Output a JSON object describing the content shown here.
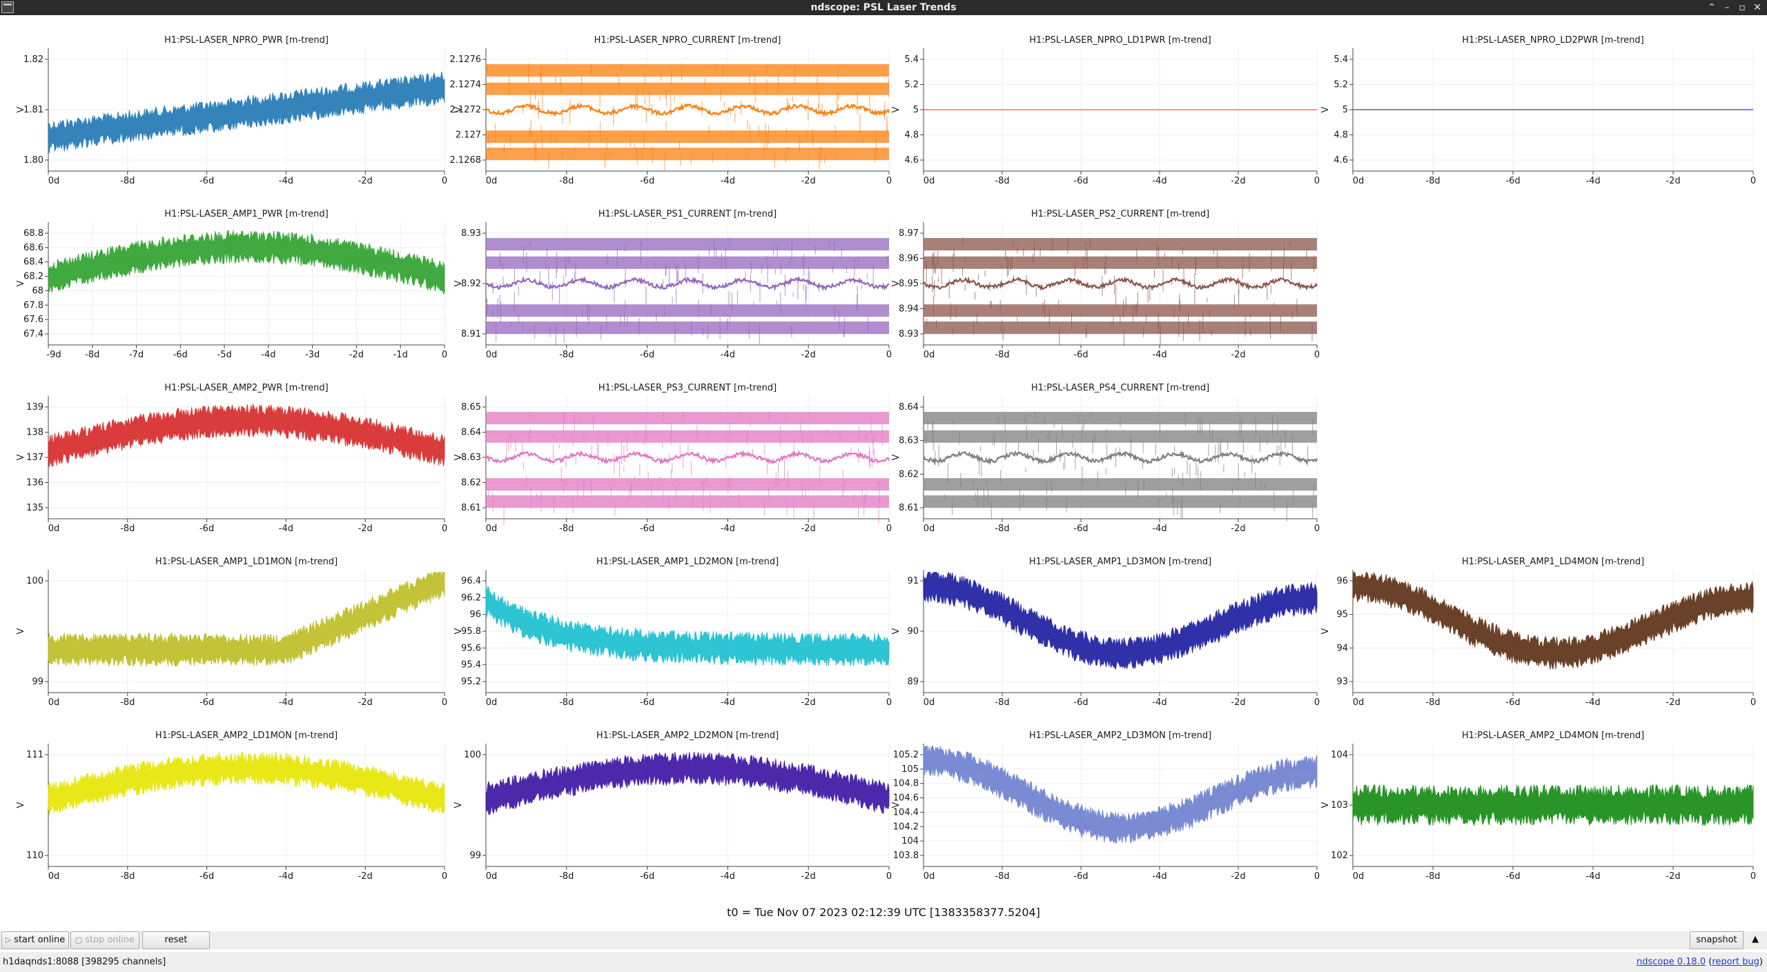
{
  "window": {
    "title": "ndscope: PSL Laser Trends",
    "controls": [
      "minimize",
      "maximize",
      "restore",
      "close"
    ]
  },
  "x_ticks_10": [
    "0d",
    "-9d",
    "-8d",
    "-7d",
    "-6d",
    "-5d",
    "-4d",
    "-3d",
    "-2d",
    "-1d",
    "0"
  ],
  "plots": [
    {
      "title": "H1:PSL-LASER_NPRO_PWR [m-trend]",
      "color": "#1f77b4",
      "ylabel": "V",
      "yticks": [
        "1.82",
        "1.81",
        "1.80"
      ],
      "xticks": [
        "0d",
        "-8d",
        "-6d",
        "-4d",
        "-2d",
        "0"
      ],
      "trend": "rising-noisy",
      "mean": 1.81
    },
    {
      "title": "H1:PSL-LASER_NPRO_CURRENT [m-trend]",
      "color": "#ff7f0e",
      "ylabel": "V",
      "yticks": [
        "2.1276",
        "2.1274",
        "2.1272",
        "2.127",
        "2.1268"
      ],
      "xticks": [
        "0d",
        "-8d",
        "-6d",
        "-4d",
        "-2d",
        "0"
      ],
      "trend": "quantized-bands",
      "mean": 2.1272
    },
    {
      "title": "H1:PSL-LASER_NPRO_LD1PWR [m-trend]",
      "color": "#ff6b6b",
      "ylabel": "V",
      "yticks": [
        "5.4",
        "5.2",
        "5",
        "4.8",
        "4.6"
      ],
      "xticks": [
        "0d",
        "-8d",
        "-6d",
        "-4d",
        "-2d",
        "0"
      ],
      "trend": "flat",
      "mean": 5
    },
    {
      "title": "H1:PSL-LASER_NPRO_LD2PWR [m-trend]",
      "color": "#5a5ab4",
      "ylabel": "V",
      "yticks": [
        "5.4",
        "5.2",
        "5",
        "4.8",
        "4.6"
      ],
      "xticks": [
        "0d",
        "-8d",
        "-6d",
        "-4d",
        "-2d",
        "0"
      ],
      "trend": "flat",
      "mean": 5
    },
    {
      "title": "H1:PSL-LASER_AMP1_PWR [m-trend]",
      "color": "#2ca02c",
      "ylabel": "V",
      "yticks": [
        "68.8",
        "68.6",
        "68.4",
        "68.2",
        "68",
        "67.8",
        "67.6",
        "67.4"
      ],
      "xticks": [
        "-9d",
        "-8d",
        "-7d",
        "-6d",
        "-5d",
        "-4d",
        "-3d",
        "-2d",
        "-1d",
        "0"
      ],
      "trend": "hump-noisy",
      "mean": 68.0
    },
    {
      "title": "H1:PSL-LASER_PS1_CURRENT [m-trend]",
      "color": "#9467bd",
      "ylabel": "V",
      "yticks": [
        "8.93",
        "8.92",
        "8.91"
      ],
      "xticks": [
        "0d",
        "-8d",
        "-6d",
        "-4d",
        "-2d",
        "0"
      ],
      "trend": "quantized-bands",
      "mean": 8.92
    },
    {
      "title": "H1:PSL-LASER_PS2_CURRENT [m-trend]",
      "color": "#8c564b",
      "ylabel": "V",
      "yticks": [
        "8.97",
        "8.96",
        "8.95",
        "8.94",
        "8.93"
      ],
      "xticks": [
        "0d",
        "-8d",
        "-6d",
        "-4d",
        "-2d",
        "0"
      ],
      "trend": "quantized-bands",
      "mean": 8.955
    },
    null,
    {
      "title": "H1:PSL-LASER_AMP2_PWR [m-trend]",
      "color": "#d62728",
      "ylabel": "V",
      "yticks": [
        "139",
        "138",
        "137",
        "136",
        "135"
      ],
      "xticks": [
        "0d",
        "-8d",
        "-6d",
        "-4d",
        "-2d",
        "0"
      ],
      "trend": "hump-noisy",
      "mean": 137
    },
    {
      "title": "H1:PSL-LASER_PS3_CURRENT [m-trend]",
      "color": "#e377c2",
      "ylabel": "V",
      "yticks": [
        "8.65",
        "8.64",
        "8.63",
        "8.62",
        "8.61"
      ],
      "xticks": [
        "0d",
        "-8d",
        "-6d",
        "-4d",
        "-2d",
        "0"
      ],
      "trend": "quantized-bands",
      "mean": 8.628
    },
    {
      "title": "H1:PSL-LASER_PS4_CURRENT [m-trend]",
      "color": "#7f7f7f",
      "ylabel": "V",
      "yticks": [
        "8.64",
        "8.63",
        "8.62",
        "8.61"
      ],
      "xticks": [
        "0d",
        "-8d",
        "-6d",
        "-4d",
        "-2d",
        "0"
      ],
      "trend": "quantized-bands",
      "mean": 8.62
    },
    null,
    {
      "title": "H1:PSL-LASER_AMP1_LD1MON [m-trend]",
      "color": "#bcbd22",
      "ylabel": "V",
      "yticks": [
        "100",
        "99"
      ],
      "xticks": [
        "0d",
        "-8d",
        "-6d",
        "-4d",
        "-2d",
        "0"
      ],
      "trend": "dip-then-rise",
      "mean": 99.6
    },
    {
      "title": "H1:PSL-LASER_AMP1_LD2MON [m-trend]",
      "color": "#17becf",
      "ylabel": "V",
      "yticks": [
        "96.4",
        "96.2",
        "96",
        "95.8",
        "95.6",
        "95.4",
        "95.2"
      ],
      "xticks": [
        "0d",
        "-8d",
        "-6d",
        "-4d",
        "-2d",
        "0"
      ],
      "trend": "decay-flat",
      "mean": 95.8
    },
    {
      "title": "H1:PSL-LASER_AMP1_LD3MON [m-trend]",
      "color": "#1a1aa0",
      "ylabel": "V",
      "yticks": [
        "91",
        "90",
        "89"
      ],
      "xticks": [
        "0d",
        "-8d",
        "-6d",
        "-4d",
        "-2d",
        "0"
      ],
      "trend": "valley",
      "mean": 89.6
    },
    {
      "title": "H1:PSL-LASER_AMP1_LD4MON [m-trend]",
      "color": "#5a2d12",
      "ylabel": "V",
      "yticks": [
        "96",
        "95",
        "94",
        "93"
      ],
      "xticks": [
        "0d",
        "-8d",
        "-6d",
        "-4d",
        "-2d",
        "0"
      ],
      "trend": "valley",
      "mean": 94.2
    },
    {
      "title": "H1:PSL-LASER_AMP2_LD1MON [m-trend]",
      "color": "#e6e600",
      "ylabel": "V",
      "yticks": [
        "111",
        "110"
      ],
      "xticks": [
        "0d",
        "-8d",
        "-6d",
        "-4d",
        "-2d",
        "0"
      ],
      "trend": "hump-noisy",
      "mean": 110.2
    },
    {
      "title": "H1:PSL-LASER_AMP2_LD2MON [m-trend]",
      "color": "#3a11a3",
      "ylabel": "V",
      "yticks": [
        "100",
        "99"
      ],
      "xticks": [
        "0d",
        "-8d",
        "-6d",
        "-4d",
        "-2d",
        "0"
      ],
      "trend": "hump-noisy",
      "mean": 99.6
    },
    {
      "title": "H1:PSL-LASER_AMP2_LD3MON [m-trend]",
      "color": "#6d7fcf",
      "ylabel": "V",
      "yticks": [
        "105.2",
        "105",
        "104.8",
        "104.6",
        "104.4",
        "104.2",
        "104",
        "103.8"
      ],
      "xticks": [
        "0d",
        "-8d",
        "-6d",
        "-4d",
        "-2d",
        "0"
      ],
      "trend": "valley",
      "mean": 104.4
    },
    {
      "title": "H1:PSL-LASER_AMP2_LD4MON [m-trend]",
      "color": "#128a12",
      "ylabel": "V",
      "yticks": [
        "104",
        "103",
        "102"
      ],
      "xticks": [
        "0d",
        "-8d",
        "-6d",
        "-4d",
        "-2d",
        "0"
      ],
      "trend": "flat-noisy",
      "mean": 103.3
    }
  ],
  "t0": "t0 = Tue Nov 07 2023 02:12:39 UTC [1383358377.5204]",
  "controls": {
    "start_online": "start online",
    "stop_online": "stop online",
    "reset": "reset",
    "snapshot": "snapshot"
  },
  "status": {
    "server": "h1daqnds1:8088  [398295 channels]",
    "version_link": "ndscope 0.18.0",
    "report_bug_link": "report bug"
  }
}
